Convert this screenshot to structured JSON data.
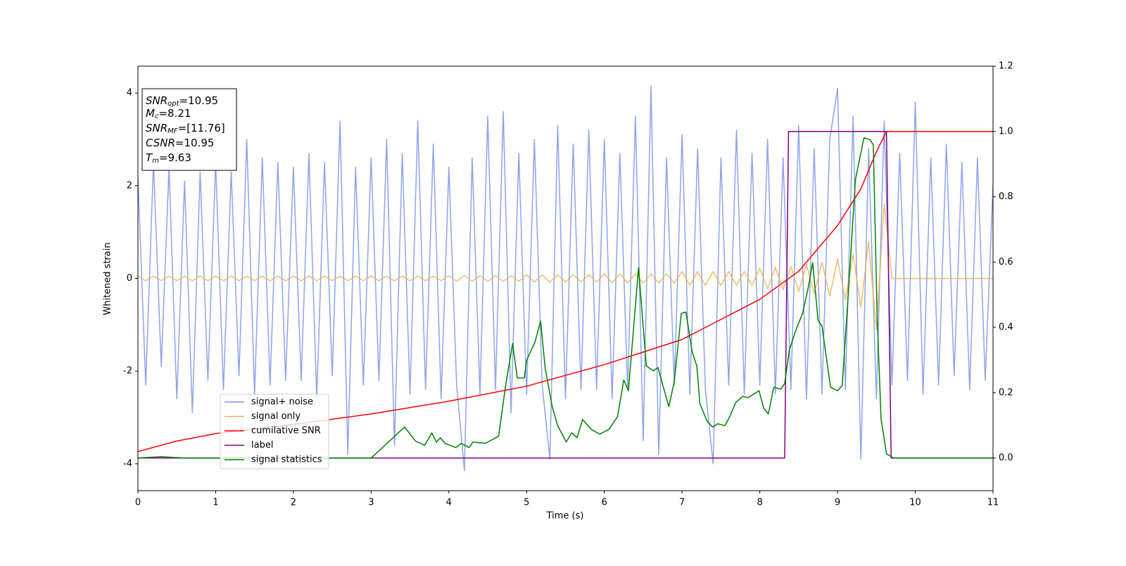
{
  "chart_data": {
    "type": "line",
    "xlabel": "Time (s)",
    "ylabel": "Whitened strain",
    "xlim": [
      0,
      11
    ],
    "ylim": [
      -4.58,
      4.58
    ],
    "y2lim": [
      -0.1,
      1.2
    ],
    "xticks": [
      0,
      1,
      2,
      3,
      4,
      5,
      6,
      7,
      8,
      9,
      10,
      11
    ],
    "yticks": [
      -4,
      -2,
      0,
      2,
      4
    ],
    "y2ticks": [
      {
        "value": 0,
        "label": "0.0"
      },
      {
        "value": 0.2,
        "label": "0.2"
      },
      {
        "value": 0.4,
        "label": "0.4"
      },
      {
        "value": 0.6,
        "label": "0.6"
      },
      {
        "value": 0.8,
        "label": "0.8"
      },
      {
        "value": 1.0,
        "label": "1.0"
      },
      {
        "value": 1.2,
        "label": "1.2"
      }
    ],
    "legend": true,
    "annotation": [
      {
        "var": "SNR",
        "sub": "opt",
        "text": "=10.95"
      },
      {
        "var": "M",
        "sub": "c",
        "text": "=8.21"
      },
      {
        "var": "SNR",
        "sub": "MF",
        "text": "=[11.76]"
      },
      {
        "var": "CSNR",
        "text": "=10.95"
      },
      {
        "var": "T",
        "sub": "m",
        "text": "=9.63"
      }
    ],
    "x": [
      0,
      0.1,
      0.2,
      0.3,
      0.4,
      0.5,
      0.6,
      0.7,
      0.8,
      0.9,
      1,
      1.1,
      1.2,
      1.3,
      1.4,
      1.5,
      1.6,
      1.7,
      1.8,
      1.9,
      2,
      2.1,
      2.2,
      2.3,
      2.4,
      2.5,
      2.6,
      2.7,
      2.8,
      2.9,
      3,
      3.1,
      3.2,
      3.3,
      3.4,
      3.5,
      3.6,
      3.7,
      3.8,
      3.9,
      4,
      4.1,
      4.2,
      4.3,
      4.4,
      4.5,
      4.6,
      4.7,
      4.8,
      4.9,
      5,
      5.1,
      5.2,
      5.3,
      5.4,
      5.5,
      5.6,
      5.7,
      5.8,
      5.9,
      6,
      6.1,
      6.2,
      6.3,
      6.4,
      6.5,
      6.6,
      6.7,
      6.8,
      6.9,
      7,
      7.1,
      7.2,
      7.3,
      7.4,
      7.5,
      7.6,
      7.7,
      7.8,
      7.9,
      8,
      8.1,
      8.2,
      8.3,
      8.4,
      8.5,
      8.6,
      8.7,
      8.8,
      8.9,
      9,
      9.1,
      9.2,
      9.3,
      9.4,
      9.5,
      9.6,
      9.7,
      9.8,
      9.9,
      10,
      10.1,
      10.2,
      10.3,
      10.4,
      10.5,
      10.6,
      10.7,
      10.8,
      10.9,
      11
    ],
    "series": [
      {
        "name": "signal+ noise",
        "color": "#7893e8",
        "values": [
          2.2,
          -2.3,
          2.5,
          -1.9,
          2.4,
          -2.6,
          2.1,
          -2.9,
          2.3,
          -2.2,
          2.5,
          -2.4,
          2.3,
          -2.1,
          3.0,
          -2.5,
          2.6,
          -2.3,
          2.5,
          -2.2,
          2.4,
          -2.2,
          2.7,
          -2.6,
          2.5,
          -2.1,
          3.4,
          -3.8,
          2.4,
          -2.3,
          2.6,
          -2.2,
          3.0,
          -3.6,
          2.7,
          -2.5,
          3.4,
          -2.4,
          2.9,
          -2.6,
          2.4,
          -2.3,
          -4.15,
          2.6,
          -2.5,
          3.5,
          -2.4,
          3.6,
          -2.9,
          2.7,
          -2.5,
          3.0,
          -2.3,
          -3.9,
          3.3,
          -2.6,
          2.9,
          -2.4,
          3.2,
          -2.4,
          3.0,
          -2.6,
          2.7,
          -2.4,
          3.5,
          -3.5,
          4.15,
          -3.8,
          2.6,
          -2.3,
          3.1,
          -2.5,
          2.8,
          -2.4,
          -4.0,
          2.6,
          -2.3,
          3.2,
          -2.5,
          2.7,
          -2.3,
          3.0,
          -2.5,
          2.6,
          -2.4,
          3.3,
          -2.6,
          2.8,
          -2.5,
          3.0,
          4.1,
          -2.4,
          3.5,
          -3.9,
          2.8,
          -2.6,
          3.4,
          -2.3,
          2.7,
          -2.2,
          3.8,
          -2.5,
          2.6,
          -2.3,
          2.9,
          -2.1,
          2.5,
          -2.4,
          2.6,
          -2.2,
          2.0
        ]
      },
      {
        "name": "signal only",
        "color": "#f0b050",
        "values": [
          0.05,
          -0.05,
          0.05,
          -0.05,
          0.05,
          -0.05,
          0.05,
          -0.05,
          0.05,
          -0.05,
          0.05,
          -0.05,
          0.05,
          -0.05,
          0.05,
          -0.05,
          0.05,
          -0.05,
          0.05,
          -0.05,
          0.05,
          -0.05,
          0.05,
          -0.05,
          0.05,
          -0.05,
          0.05,
          -0.05,
          0.05,
          -0.05,
          0.05,
          -0.05,
          0.05,
          -0.05,
          0.05,
          -0.05,
          0.05,
          -0.05,
          0.05,
          -0.05,
          0.06,
          -0.06,
          0.06,
          -0.06,
          0.06,
          -0.06,
          0.06,
          -0.06,
          0.06,
          -0.06,
          0.08,
          -0.08,
          0.08,
          -0.08,
          0.08,
          -0.08,
          0.08,
          -0.08,
          0.08,
          -0.08,
          0.1,
          -0.1,
          0.1,
          -0.1,
          0.1,
          -0.1,
          0.1,
          -0.1,
          0.1,
          -0.1,
          0.15,
          -0.15,
          0.15,
          -0.15,
          0.15,
          -0.15,
          0.15,
          -0.15,
          0.15,
          -0.15,
          0.22,
          -0.22,
          0.24,
          -0.24,
          0.26,
          -0.28,
          0.3,
          -0.32,
          0.35,
          -0.38,
          0.42,
          -0.46,
          0.52,
          -0.62,
          0.8,
          -1.1,
          1.6,
          0,
          0,
          0,
          0,
          0,
          0,
          0,
          0,
          0,
          0,
          0,
          0,
          0,
          0
        ]
      },
      {
        "name": "cumilative SNR",
        "color": "#ff0000",
        "axis": "y2",
        "x": [
          0,
          0.5,
          1,
          2,
          3,
          4,
          5,
          6,
          7,
          8,
          8.5,
          9,
          9.3,
          9.5,
          9.63,
          11
        ],
        "values": [
          0.02,
          0.052,
          0.075,
          0.103,
          0.135,
          0.174,
          0.22,
          0.286,
          0.363,
          0.486,
          0.572,
          0.712,
          0.824,
          0.938,
          1.0,
          1.0
        ]
      },
      {
        "name": "label",
        "color": "#800080",
        "axis": "y2",
        "x": [
          0,
          8.32,
          8.37,
          9.63,
          9.69,
          11
        ],
        "values": [
          0,
          0,
          1,
          1,
          0,
          0
        ]
      },
      {
        "name": "signal statistics",
        "color": "#008000",
        "axis": "y2",
        "x": [
          0,
          0.3,
          0.6,
          3,
          3.11,
          3.43,
          3.57,
          3.69,
          3.78,
          3.84,
          3.89,
          3.95,
          4.09,
          4.16,
          4.26,
          4.31,
          4.47,
          4.64,
          4.73,
          4.82,
          4.88,
          4.97,
          5.0,
          5.11,
          5.18,
          5.24,
          5.33,
          5.4,
          5.51,
          5.58,
          5.65,
          5.72,
          5.83,
          5.94,
          6.06,
          6.17,
          6.25,
          6.31,
          6.44,
          6.54,
          6.63,
          6.69,
          6.83,
          6.9,
          6.99,
          7.05,
          7.13,
          7.19,
          7.23,
          7.32,
          7.39,
          7.46,
          7.55,
          7.61,
          7.69,
          7.78,
          7.85,
          7.99,
          8.05,
          8.11,
          8.18,
          8.27,
          8.32,
          8.38,
          8.46,
          8.55,
          8.62,
          8.68,
          8.75,
          8.8,
          8.91,
          9.0,
          9.06,
          9.14,
          9.23,
          9.34,
          9.42,
          9.46,
          9.51,
          9.56,
          9.63,
          9.72,
          11
        ],
        "values": [
          0,
          0.004,
          0,
          0,
          0.024,
          0.095,
          0.052,
          0.039,
          0.077,
          0.049,
          0.062,
          0.045,
          0.032,
          0.045,
          0.032,
          0.049,
          0.045,
          0.067,
          0.222,
          0.351,
          0.245,
          0.245,
          0.299,
          0.357,
          0.419,
          0.273,
          0.157,
          0.099,
          0.049,
          0.077,
          0.062,
          0.118,
          0.088,
          0.073,
          0.088,
          0.127,
          0.239,
          0.206,
          0.583,
          0.282,
          0.267,
          0.277,
          0.157,
          0.234,
          0.443,
          0.447,
          0.325,
          0.282,
          0.166,
          0.114,
          0.095,
          0.105,
          0.099,
          0.125,
          0.17,
          0.189,
          0.185,
          0.206,
          0.153,
          0.135,
          0.217,
          0.211,
          0.228,
          0.331,
          0.389,
          0.443,
          0.518,
          0.598,
          0.421,
          0.404,
          0.217,
          0.206,
          0.222,
          0.508,
          0.852,
          0.981,
          0.974,
          0.959,
          0.432,
          0.12,
          0.013,
          0,
          0
        ]
      }
    ]
  }
}
